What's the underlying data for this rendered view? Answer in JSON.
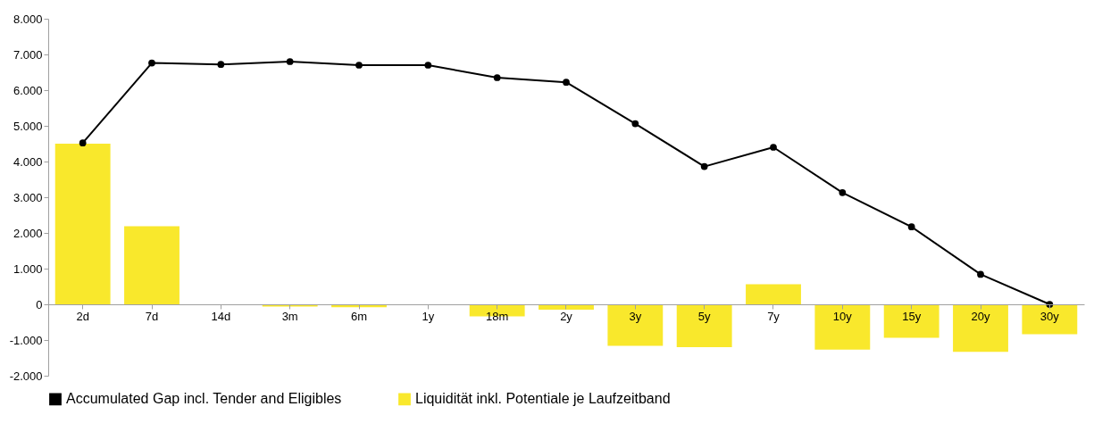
{
  "chart_data": {
    "type": "bar",
    "categories": [
      "2d",
      "7d",
      "14d",
      "3m",
      "6m",
      "1y",
      "18m",
      "2y",
      "3y",
      "5y",
      "7y",
      "10y",
      "15y",
      "20y",
      "30y"
    ],
    "series": [
      {
        "name": "Accumulated Gap incl. Tender and Eligibles",
        "type": "line",
        "color": "#000000",
        "marker": "circle",
        "values": [
          4520,
          6760,
          6720,
          6800,
          6700,
          6700,
          6350,
          6220,
          5060,
          3860,
          4400,
          3130,
          2170,
          840,
          0
        ]
      },
      {
        "name": "Liquidität inkl. Potentiale je Laufzeitband",
        "color": "#f9e82c",
        "values": [
          4500,
          2190,
          -10,
          -60,
          -80,
          -10,
          -340,
          -150,
          -1160,
          -1200,
          560,
          -1270,
          -940,
          -1330,
          -840
        ]
      }
    ],
    "ylim": [
      -2000,
      8000
    ],
    "yticks": [
      {
        "value": -2000,
        "label": "-2.000"
      },
      {
        "value": -1000,
        "label": "-1.000"
      },
      0,
      {
        "value": 1000,
        "label": "1.000"
      },
      {
        "value": 2000,
        "label": "2.000"
      },
      {
        "value": 3000,
        "label": "3.000"
      },
      {
        "value": 4000,
        "label": "4.000"
      },
      {
        "value": 5000,
        "label": "5.000"
      },
      {
        "value": 6000,
        "label": "6.000"
      },
      {
        "value": 7000,
        "label": "7.000"
      },
      {
        "value": 8000,
        "label": "8.000"
      }
    ],
    "grid": false,
    "legend": "bottom"
  }
}
